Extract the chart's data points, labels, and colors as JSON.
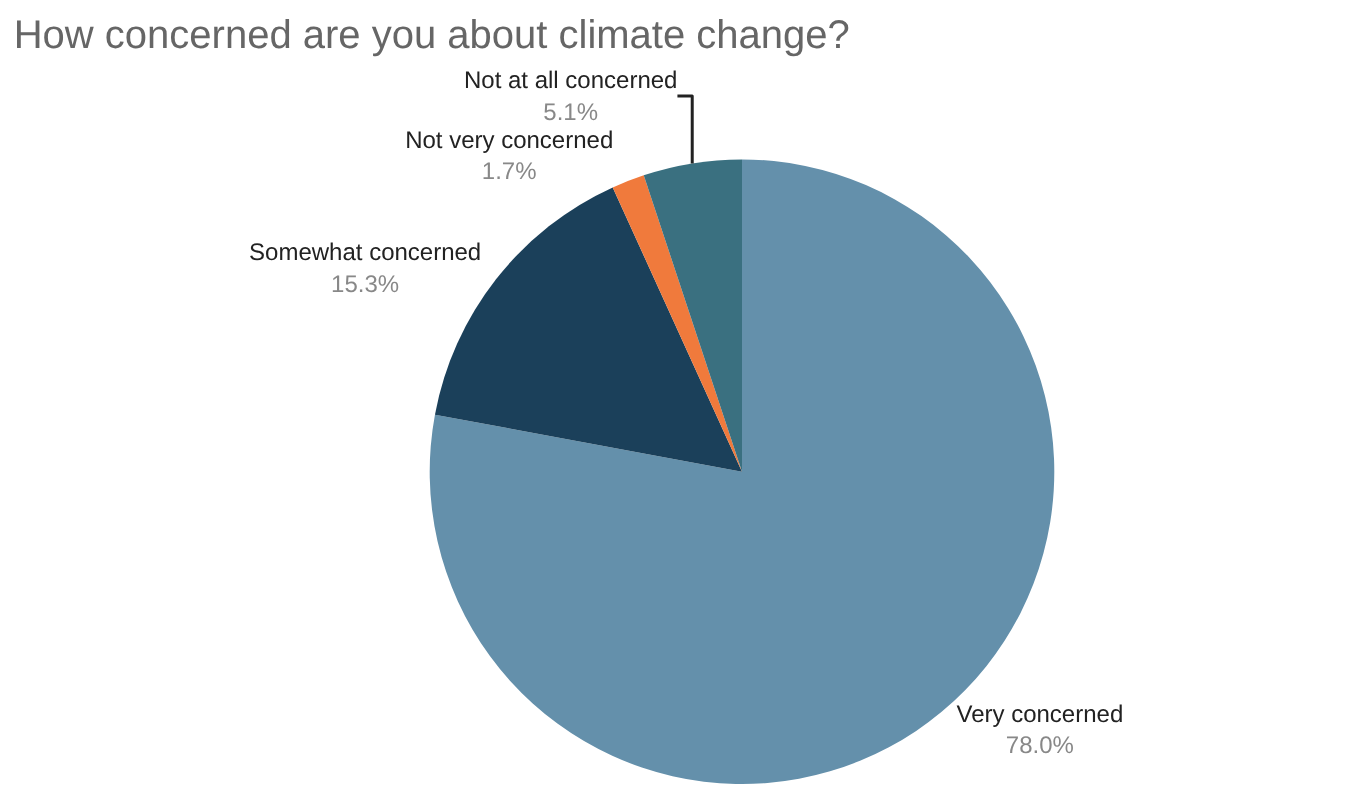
{
  "chart_data": {
    "type": "pie",
    "title": "How concerned are you about climate change?",
    "categories": [
      "Very concerned",
      "Somewhat concerned",
      "Not very concerned",
      "Not at all concerned"
    ],
    "values": [
      78.0,
      15.3,
      1.7,
      5.1
    ],
    "colors": [
      "#6490ab",
      "#1b405a",
      "#f07a3c",
      "#3a7080"
    ],
    "value_labels": [
      "78.0%",
      "15.3%",
      "1.7%",
      "5.1%"
    ],
    "legend": false
  }
}
